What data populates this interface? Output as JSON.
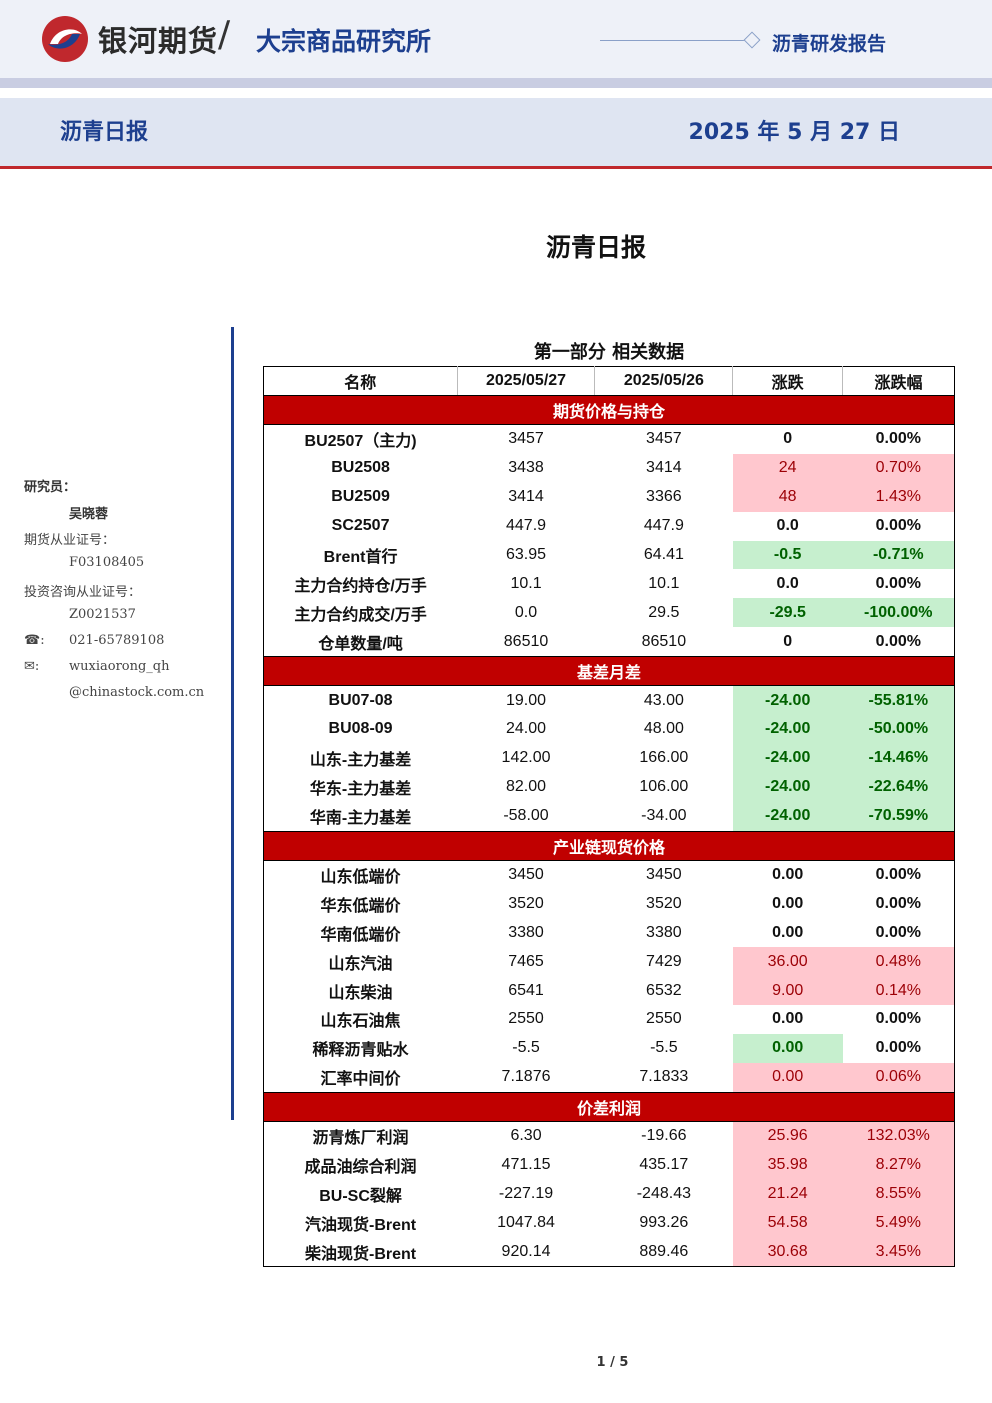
{
  "header": {
    "brand": "银河期货",
    "institute": "大宗商品研究所",
    "report_type": "沥青研发报告",
    "sub_title": "沥青日报",
    "date": "2025 年 5 月 27 日"
  },
  "doc_title": "沥青日报",
  "sidebar": {
    "researcher_label": "研究员：",
    "researcher_name": "吴晓蓉",
    "futures_cert_label": "期货从业证号：",
    "futures_cert": "F03108405",
    "advisor_cert_label": "投资咨询从业证号：",
    "advisor_cert": "Z0021537",
    "phone_icon": "☎:",
    "phone": "021-65789108",
    "email_icon": "✉:",
    "email_line1": "wuxiaorong_qh",
    "email_line2": "@chinastock.com.cn"
  },
  "table": {
    "title": "第一部分 相关数据",
    "headers": [
      "名称",
      "2025/05/27",
      "2025/05/26",
      "涨跌",
      "涨跌幅"
    ],
    "sections": [
      {
        "title": "期货价格与持仓",
        "rows": [
          {
            "name": "BU2507（主力)",
            "d1": "3457",
            "d2": "3457",
            "chg": "0",
            "pct": "0.00%",
            "style": "plain"
          },
          {
            "name": "BU2508",
            "d1": "3438",
            "d2": "3414",
            "chg": "24",
            "pct": "0.70%",
            "style": "red"
          },
          {
            "name": "BU2509",
            "d1": "3414",
            "d2": "3366",
            "chg": "48",
            "pct": "1.43%",
            "style": "red"
          },
          {
            "name": "SC2507",
            "d1": "447.9",
            "d2": "447.9",
            "chg": "0.0",
            "pct": "0.00%",
            "style": "plain"
          },
          {
            "name": "Brent首行",
            "d1": "63.95",
            "d2": "64.41",
            "chg": "-0.5",
            "pct": "-0.71%",
            "style": "green"
          },
          {
            "name": "主力合约持仓/万手",
            "d1": "10.1",
            "d2": "10.1",
            "chg": "0.0",
            "pct": "0.00%",
            "style": "plain"
          },
          {
            "name": "主力合约成交/万手",
            "d1": "0.0",
            "d2": "29.5",
            "chg": "-29.5",
            "pct": "-100.00%",
            "style": "green"
          },
          {
            "name": "仓单数量/吨",
            "d1": "86510",
            "d2": "86510",
            "chg": "0",
            "pct": "0.00%",
            "style": "plain"
          }
        ]
      },
      {
        "title": "基差月差",
        "rows": [
          {
            "name": "BU07-08",
            "d1": "19.00",
            "d2": "43.00",
            "chg": "-24.00",
            "pct": "-55.81%",
            "style": "green"
          },
          {
            "name": "BU08-09",
            "d1": "24.00",
            "d2": "48.00",
            "chg": "-24.00",
            "pct": "-50.00%",
            "style": "green"
          },
          {
            "name": "山东-主力基差",
            "d1": "142.00",
            "d2": "166.00",
            "chg": "-24.00",
            "pct": "-14.46%",
            "style": "green"
          },
          {
            "name": "华东-主力基差",
            "d1": "82.00",
            "d2": "106.00",
            "chg": "-24.00",
            "pct": "-22.64%",
            "style": "green"
          },
          {
            "name": "华南-主力基差",
            "d1": "-58.00",
            "d2": "-34.00",
            "chg": "-24.00",
            "pct": "-70.59%",
            "style": "green"
          }
        ]
      },
      {
        "title": "产业链现货价格",
        "rows": [
          {
            "name": "山东低端价",
            "d1": "3450",
            "d2": "3450",
            "chg": "0.00",
            "pct": "0.00%",
            "style": "plain"
          },
          {
            "name": "华东低端价",
            "d1": "3520",
            "d2": "3520",
            "chg": "0.00",
            "pct": "0.00%",
            "style": "plain"
          },
          {
            "name": "华南低端价",
            "d1": "3380",
            "d2": "3380",
            "chg": "0.00",
            "pct": "0.00%",
            "style": "plain"
          },
          {
            "name": "山东汽油",
            "d1": "7465",
            "d2": "7429",
            "chg": "36.00",
            "pct": "0.48%",
            "style": "red"
          },
          {
            "name": "山东柴油",
            "d1": "6541",
            "d2": "6532",
            "chg": "9.00",
            "pct": "0.14%",
            "style": "red"
          },
          {
            "name": "山东石油焦",
            "d1": "2550",
            "d2": "2550",
            "chg": "0.00",
            "pct": "0.00%",
            "style": "plain"
          },
          {
            "name": "稀释沥青贴水",
            "d1": "-5.5",
            "d2": "-5.5",
            "chg": "0.00",
            "pct": "0.00%",
            "style": "green-chg"
          },
          {
            "name": "汇率中间价",
            "d1": "7.1876",
            "d2": "7.1833",
            "chg": "0.00",
            "pct": "0.06%",
            "style": "red"
          }
        ]
      },
      {
        "title": "价差利润",
        "rows": [
          {
            "name": "沥青炼厂利润",
            "d1": "6.30",
            "d2": "-19.66",
            "chg": "25.96",
            "pct": "132.03%",
            "style": "red"
          },
          {
            "name": "成品油综合利润",
            "d1": "471.15",
            "d2": "435.17",
            "chg": "35.98",
            "pct": "8.27%",
            "style": "red"
          },
          {
            "name": "BU-SC裂解",
            "d1": "-227.19",
            "d2": "-248.43",
            "chg": "21.24",
            "pct": "8.55%",
            "style": "red"
          },
          {
            "name": "汽油现货-Brent",
            "d1": "1047.84",
            "d2": "993.26",
            "chg": "54.58",
            "pct": "5.49%",
            "style": "red"
          },
          {
            "name": "柴油现货-Brent",
            "d1": "920.14",
            "d2": "889.46",
            "chg": "30.68",
            "pct": "3.45%",
            "style": "red"
          }
        ]
      }
    ]
  },
  "page_number": "1 / 5",
  "colors": {
    "brand_blue": "#1d3f8f",
    "section_red": "#c00000",
    "up_bg": "#ffc7ce",
    "up_text": "#9c0006",
    "down_bg": "#c6efce",
    "down_text": "#006100"
  }
}
